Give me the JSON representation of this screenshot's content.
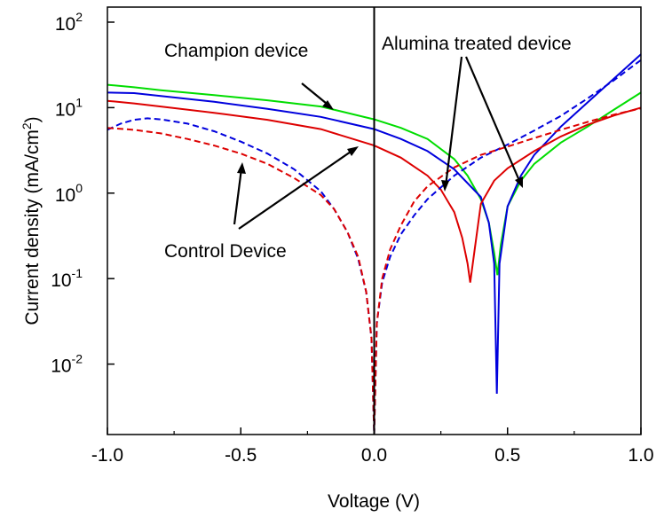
{
  "chart_data": {
    "type": "line",
    "xlabel": "Voltage (V)",
    "ylabel": "Current density (mA/cm",
    "ylabel_superscript": "2",
    "ylabel_suffix": ")",
    "xlim": [
      -1.0,
      1.0
    ],
    "ylim": [
      0.0015,
      150
    ],
    "yscale": "log",
    "x_ticks": [
      {
        "value": -1.0,
        "label": "-1.0"
      },
      {
        "value": -0.5,
        "label": "-0.5"
      },
      {
        "value": 0.0,
        "label": "0.0"
      },
      {
        "value": 0.5,
        "label": "0.5"
      },
      {
        "value": 1.0,
        "label": "1.0"
      }
    ],
    "y_ticks": [
      {
        "value": 0.01,
        "base": "10",
        "exp": "-2"
      },
      {
        "value": 0.1,
        "base": "10",
        "exp": "-1"
      },
      {
        "value": 1,
        "base": "10",
        "exp": "0"
      },
      {
        "value": 10,
        "base": "10",
        "exp": "1"
      },
      {
        "value": 100,
        "base": "10",
        "exp": "2"
      }
    ],
    "vertical_line_x": 0.0,
    "grid": false,
    "annotations": [
      {
        "text": "Champion device"
      },
      {
        "text": "Alumina treated device"
      },
      {
        "text": "Control Device"
      }
    ],
    "series": [
      {
        "color": "#00dd00",
        "dash": "solid",
        "points": [
          [
            -1.0,
            18.5
          ],
          [
            -0.9,
            17.3
          ],
          [
            -0.8,
            16.0
          ],
          [
            -0.6,
            14.0
          ],
          [
            -0.4,
            12.2
          ],
          [
            -0.2,
            10.3
          ],
          [
            0.0,
            7.3
          ],
          [
            0.1,
            5.8
          ],
          [
            0.2,
            4.3
          ],
          [
            0.3,
            2.5
          ],
          [
            0.35,
            1.6
          ],
          [
            0.4,
            0.85
          ],
          [
            0.43,
            0.45
          ],
          [
            0.45,
            0.2
          ],
          [
            0.462,
            0.11
          ],
          [
            0.475,
            0.25
          ],
          [
            0.5,
            0.7
          ],
          [
            0.55,
            1.4
          ],
          [
            0.6,
            2.2
          ],
          [
            0.7,
            3.9
          ],
          [
            0.8,
            6.0
          ],
          [
            0.9,
            9.5
          ],
          [
            1.0,
            15.0
          ]
        ]
      },
      {
        "color": "#0000dd",
        "dash": "solid",
        "points": [
          [
            -1.0,
            15.0
          ],
          [
            -0.9,
            14.8
          ],
          [
            -0.8,
            13.7
          ],
          [
            -0.6,
            11.7
          ],
          [
            -0.4,
            9.7
          ],
          [
            -0.2,
            7.8
          ],
          [
            0.0,
            5.6
          ],
          [
            0.1,
            4.3
          ],
          [
            0.2,
            3.1
          ],
          [
            0.3,
            1.9
          ],
          [
            0.4,
            0.9
          ],
          [
            0.43,
            0.45
          ],
          [
            0.45,
            0.15
          ],
          [
            0.46,
            0.0045
          ],
          [
            0.47,
            0.15
          ],
          [
            0.5,
            0.7
          ],
          [
            0.55,
            1.6
          ],
          [
            0.6,
            2.8
          ],
          [
            0.7,
            6.0
          ],
          [
            0.8,
            11.5
          ],
          [
            0.9,
            22.0
          ],
          [
            1.0,
            42.0
          ]
        ]
      },
      {
        "color": "#dd0000",
        "dash": "solid",
        "points": [
          [
            -1.0,
            12.0
          ],
          [
            -0.9,
            11.2
          ],
          [
            -0.8,
            10.3
          ],
          [
            -0.6,
            8.7
          ],
          [
            -0.4,
            7.2
          ],
          [
            -0.2,
            5.6
          ],
          [
            0.0,
            3.6
          ],
          [
            0.1,
            2.6
          ],
          [
            0.2,
            1.6
          ],
          [
            0.25,
            1.1
          ],
          [
            0.3,
            0.6
          ],
          [
            0.33,
            0.3
          ],
          [
            0.35,
            0.15
          ],
          [
            0.36,
            0.09
          ],
          [
            0.375,
            0.2
          ],
          [
            0.4,
            0.75
          ],
          [
            0.45,
            1.4
          ],
          [
            0.5,
            1.95
          ],
          [
            0.6,
            3.1
          ],
          [
            0.7,
            4.6
          ],
          [
            0.8,
            6.3
          ],
          [
            0.9,
            8.1
          ],
          [
            1.0,
            10.0
          ]
        ]
      },
      {
        "color": "#0000dd",
        "dash": "dashed",
        "points": [
          [
            -1.0,
            5.5
          ],
          [
            -0.95,
            6.5
          ],
          [
            -0.9,
            7.2
          ],
          [
            -0.85,
            7.5
          ],
          [
            -0.8,
            7.3
          ],
          [
            -0.7,
            6.5
          ],
          [
            -0.6,
            5.3
          ],
          [
            -0.5,
            4.0
          ],
          [
            -0.4,
            2.9
          ],
          [
            -0.3,
            1.9
          ],
          [
            -0.2,
            1.05
          ],
          [
            -0.15,
            0.65
          ],
          [
            -0.1,
            0.35
          ],
          [
            -0.06,
            0.17
          ],
          [
            -0.03,
            0.07
          ],
          [
            -0.01,
            0.02
          ],
          [
            0.0,
            0.0015
          ],
          [
            0.01,
            0.03
          ],
          [
            0.03,
            0.09
          ],
          [
            0.06,
            0.18
          ],
          [
            0.1,
            0.33
          ],
          [
            0.15,
            0.55
          ],
          [
            0.2,
            0.85
          ],
          [
            0.3,
            1.6
          ],
          [
            0.4,
            2.6
          ],
          [
            0.5,
            3.7
          ],
          [
            0.6,
            5.4
          ],
          [
            0.7,
            8.0
          ],
          [
            0.8,
            12.8
          ],
          [
            0.9,
            21.0
          ],
          [
            1.0,
            36.0
          ]
        ]
      },
      {
        "color": "#dd0000",
        "dash": "dashed",
        "points": [
          [
            -1.0,
            5.8
          ],
          [
            -0.9,
            5.5
          ],
          [
            -0.8,
            5.0
          ],
          [
            -0.7,
            4.3
          ],
          [
            -0.6,
            3.6
          ],
          [
            -0.5,
            2.9
          ],
          [
            -0.4,
            2.2
          ],
          [
            -0.3,
            1.5
          ],
          [
            -0.2,
            0.95
          ],
          [
            -0.15,
            0.65
          ],
          [
            -0.1,
            0.35
          ],
          [
            -0.06,
            0.18
          ],
          [
            -0.03,
            0.07
          ],
          [
            -0.01,
            0.02
          ],
          [
            0.0,
            0.0015
          ],
          [
            0.01,
            0.03
          ],
          [
            0.03,
            0.1
          ],
          [
            0.06,
            0.22
          ],
          [
            0.1,
            0.42
          ],
          [
            0.15,
            0.8
          ],
          [
            0.2,
            1.2
          ],
          [
            0.3,
            2.0
          ],
          [
            0.4,
            2.8
          ],
          [
            0.5,
            3.5
          ],
          [
            0.6,
            4.4
          ],
          [
            0.7,
            5.5
          ],
          [
            0.8,
            6.8
          ],
          [
            0.9,
            8.3
          ],
          [
            1.0,
            9.8
          ]
        ]
      }
    ]
  }
}
